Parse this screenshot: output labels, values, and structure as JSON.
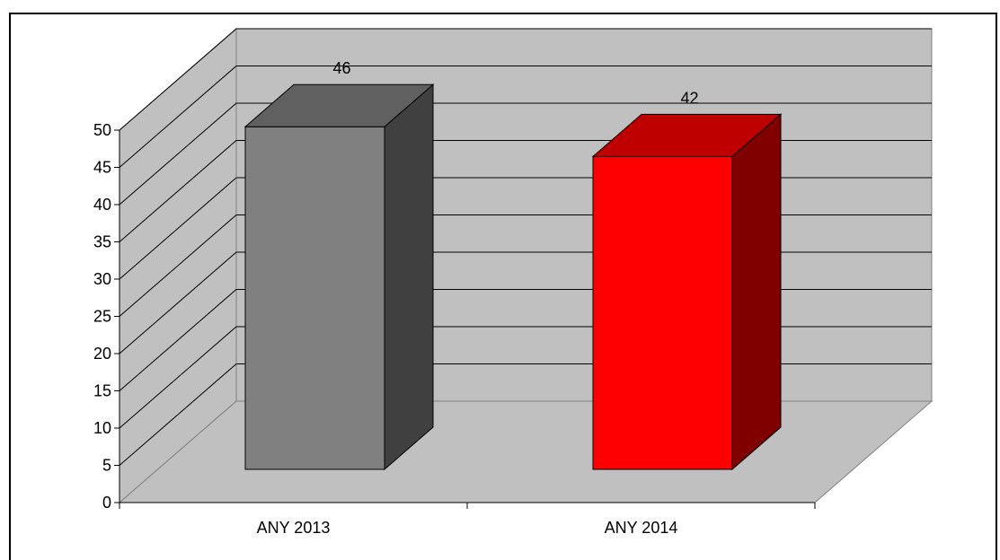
{
  "chart_data": {
    "type": "bar",
    "categories": [
      "ANY 2013",
      "ANY 2014"
    ],
    "values": [
      46,
      42
    ],
    "bar_colors": [
      "#808080",
      "#ff0000"
    ],
    "title": "",
    "xlabel": "",
    "ylabel": "",
    "ylim": [
      0,
      50
    ],
    "yticks": [
      0,
      5,
      10,
      15,
      20,
      25,
      30,
      35,
      40,
      45,
      50
    ],
    "grid": true,
    "style": "3d",
    "wall_color": "#c0c0c0",
    "floor_color": "#c0c0c0"
  }
}
